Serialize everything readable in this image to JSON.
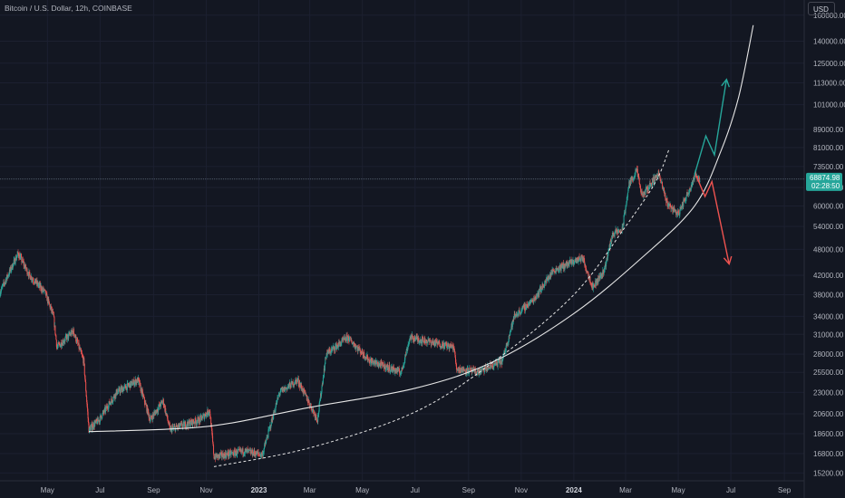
{
  "header": {
    "title": "Bitcoin / U.S. Dollar, 12h, COINBASE",
    "currency": "USD"
  },
  "price_tag": {
    "price": "68874.98",
    "countdown": "02:28:50",
    "color": "#26a69a"
  },
  "colors": {
    "background": "#131722",
    "up": "#26a69a",
    "down": "#ef5350",
    "curve": "#e6e6e6",
    "arrow_up": "#26a69a",
    "arrow_down": "#ef5350"
  },
  "chart_data": {
    "type": "candlestick",
    "scale": "log",
    "ylim": [
      14600,
      173000
    ],
    "x_range": [
      "2022-03-07",
      "2024-09-24"
    ],
    "y_ticks": [
      15200,
      16800,
      18600,
      20600,
      23000,
      25500,
      28000,
      31000,
      34000,
      38000,
      42000,
      48000,
      54000,
      60000,
      66000,
      73500,
      81000,
      89000,
      101000,
      113000,
      125000,
      140000,
      160000
    ],
    "y_tick_labels": [
      "15200.00",
      "16800.00",
      "18600.00",
      "20600.00",
      "23000.00",
      "25500.00",
      "28000.00",
      "31000.00",
      "34000.00",
      "38000.00",
      "42000.00",
      "48000.00",
      "54000.00",
      "60000.00",
      "66000.00",
      "73500.00",
      "81000.00",
      "89000.00",
      "101000.00",
      "113000.00",
      "125000.00",
      "140000.00",
      "160000.00"
    ],
    "x_ticks": [
      {
        "date": "2022-05-01",
        "label": "May",
        "bold": false
      },
      {
        "date": "2022-07-01",
        "label": "Jul",
        "bold": false
      },
      {
        "date": "2022-09-01",
        "label": "Sep",
        "bold": false
      },
      {
        "date": "2022-11-01",
        "label": "Nov",
        "bold": false
      },
      {
        "date": "2023-01-01",
        "label": "2023",
        "bold": true
      },
      {
        "date": "2023-03-01",
        "label": "Mar",
        "bold": false
      },
      {
        "date": "2023-05-01",
        "label": "May",
        "bold": false
      },
      {
        "date": "2023-07-01",
        "label": "Jul",
        "bold": false
      },
      {
        "date": "2023-09-01",
        "label": "Sep",
        "bold": false
      },
      {
        "date": "2023-11-01",
        "label": "Nov",
        "bold": false
      },
      {
        "date": "2024-01-01",
        "label": "2024",
        "bold": true
      },
      {
        "date": "2024-03-01",
        "label": "Mar",
        "bold": false
      },
      {
        "date": "2024-05-01",
        "label": "May",
        "bold": false
      },
      {
        "date": "2024-07-01",
        "label": "Jul",
        "bold": false
      },
      {
        "date": "2024-09-01",
        "label": "Sep",
        "bold": false
      }
    ],
    "current_price": 68874.98,
    "price_path": [
      {
        "date": "2022-03-07",
        "price": 38500
      },
      {
        "date": "2022-03-28",
        "price": 47000
      },
      {
        "date": "2022-04-10",
        "price": 42000
      },
      {
        "date": "2022-04-28",
        "price": 38500
      },
      {
        "date": "2022-05-08",
        "price": 34000
      },
      {
        "date": "2022-05-12",
        "price": 29000
      },
      {
        "date": "2022-05-31",
        "price": 31500
      },
      {
        "date": "2022-06-12",
        "price": 27000
      },
      {
        "date": "2022-06-18",
        "price": 19000
      },
      {
        "date": "2022-06-30",
        "price": 20000
      },
      {
        "date": "2022-07-20",
        "price": 23000
      },
      {
        "date": "2022-08-14",
        "price": 24500
      },
      {
        "date": "2022-08-28",
        "price": 20000
      },
      {
        "date": "2022-09-12",
        "price": 22000
      },
      {
        "date": "2022-09-20",
        "price": 19000
      },
      {
        "date": "2022-10-25",
        "price": 20000
      },
      {
        "date": "2022-11-05",
        "price": 21000
      },
      {
        "date": "2022-11-10",
        "price": 16500
      },
      {
        "date": "2022-12-15",
        "price": 17000
      },
      {
        "date": "2023-01-05",
        "price": 16700
      },
      {
        "date": "2023-01-25",
        "price": 23000
      },
      {
        "date": "2023-02-15",
        "price": 24500
      },
      {
        "date": "2023-03-10",
        "price": 20000
      },
      {
        "date": "2023-03-20",
        "price": 28000
      },
      {
        "date": "2023-04-14",
        "price": 30500
      },
      {
        "date": "2023-05-10",
        "price": 27000
      },
      {
        "date": "2023-06-15",
        "price": 25500
      },
      {
        "date": "2023-06-25",
        "price": 30500
      },
      {
        "date": "2023-07-20",
        "price": 29800
      },
      {
        "date": "2023-08-15",
        "price": 29000
      },
      {
        "date": "2023-08-18",
        "price": 26000
      },
      {
        "date": "2023-09-12",
        "price": 25500
      },
      {
        "date": "2023-10-10",
        "price": 27000
      },
      {
        "date": "2023-10-24",
        "price": 34000
      },
      {
        "date": "2023-11-15",
        "price": 37000
      },
      {
        "date": "2023-12-08",
        "price": 43000
      },
      {
        "date": "2024-01-11",
        "price": 46000
      },
      {
        "date": "2024-01-23",
        "price": 39500
      },
      {
        "date": "2024-02-05",
        "price": 43000
      },
      {
        "date": "2024-02-15",
        "price": 52000
      },
      {
        "date": "2024-02-26",
        "price": 53000
      },
      {
        "date": "2024-03-05",
        "price": 67000
      },
      {
        "date": "2024-03-14",
        "price": 72000
      },
      {
        "date": "2024-03-20",
        "price": 63000
      },
      {
        "date": "2024-04-08",
        "price": 71000
      },
      {
        "date": "2024-04-18",
        "price": 61000
      },
      {
        "date": "2024-05-01",
        "price": 57500
      },
      {
        "date": "2024-05-15",
        "price": 66000
      },
      {
        "date": "2024-05-21",
        "price": 70500
      },
      {
        "date": "2024-05-26",
        "price": 68875
      }
    ],
    "curve_solid": {
      "start": "2022-06-18",
      "points": [
        {
          "date": "2022-06-18",
          "price": 18800
        },
        {
          "date": "2022-11-01",
          "price": 19300
        },
        {
          "date": "2023-03-01",
          "price": 21300
        },
        {
          "date": "2023-07-01",
          "price": 23500
        },
        {
          "date": "2023-10-01",
          "price": 27000
        },
        {
          "date": "2024-01-01",
          "price": 34500
        },
        {
          "date": "2024-03-20",
          "price": 46000
        },
        {
          "date": "2024-05-20",
          "price": 60000
        },
        {
          "date": "2024-06-20",
          "price": 80000
        },
        {
          "date": "2024-07-10",
          "price": 105000
        },
        {
          "date": "2024-07-27",
          "price": 152000
        }
      ]
    },
    "curve_dashed": {
      "points": [
        {
          "date": "2022-11-10",
          "price": 15700
        },
        {
          "date": "2023-03-01",
          "price": 17300
        },
        {
          "date": "2023-07-01",
          "price": 20800
        },
        {
          "date": "2023-10-01",
          "price": 27000
        },
        {
          "date": "2024-01-01",
          "price": 38000
        },
        {
          "date": "2024-03-01",
          "price": 54000
        },
        {
          "date": "2024-04-05",
          "price": 68000
        },
        {
          "date": "2024-04-20",
          "price": 80000
        }
      ]
    },
    "arrow_up": [
      {
        "date": "2024-05-20",
        "price": 70500
      },
      {
        "date": "2024-06-02",
        "price": 86000
      },
      {
        "date": "2024-06-12",
        "price": 78000
      },
      {
        "date": "2024-06-26",
        "price": 115000
      }
    ],
    "arrow_down": [
      {
        "date": "2024-05-22",
        "price": 70000
      },
      {
        "date": "2024-06-01",
        "price": 63000
      },
      {
        "date": "2024-06-09",
        "price": 68000
      },
      {
        "date": "2024-06-29",
        "price": 44500
      }
    ]
  }
}
